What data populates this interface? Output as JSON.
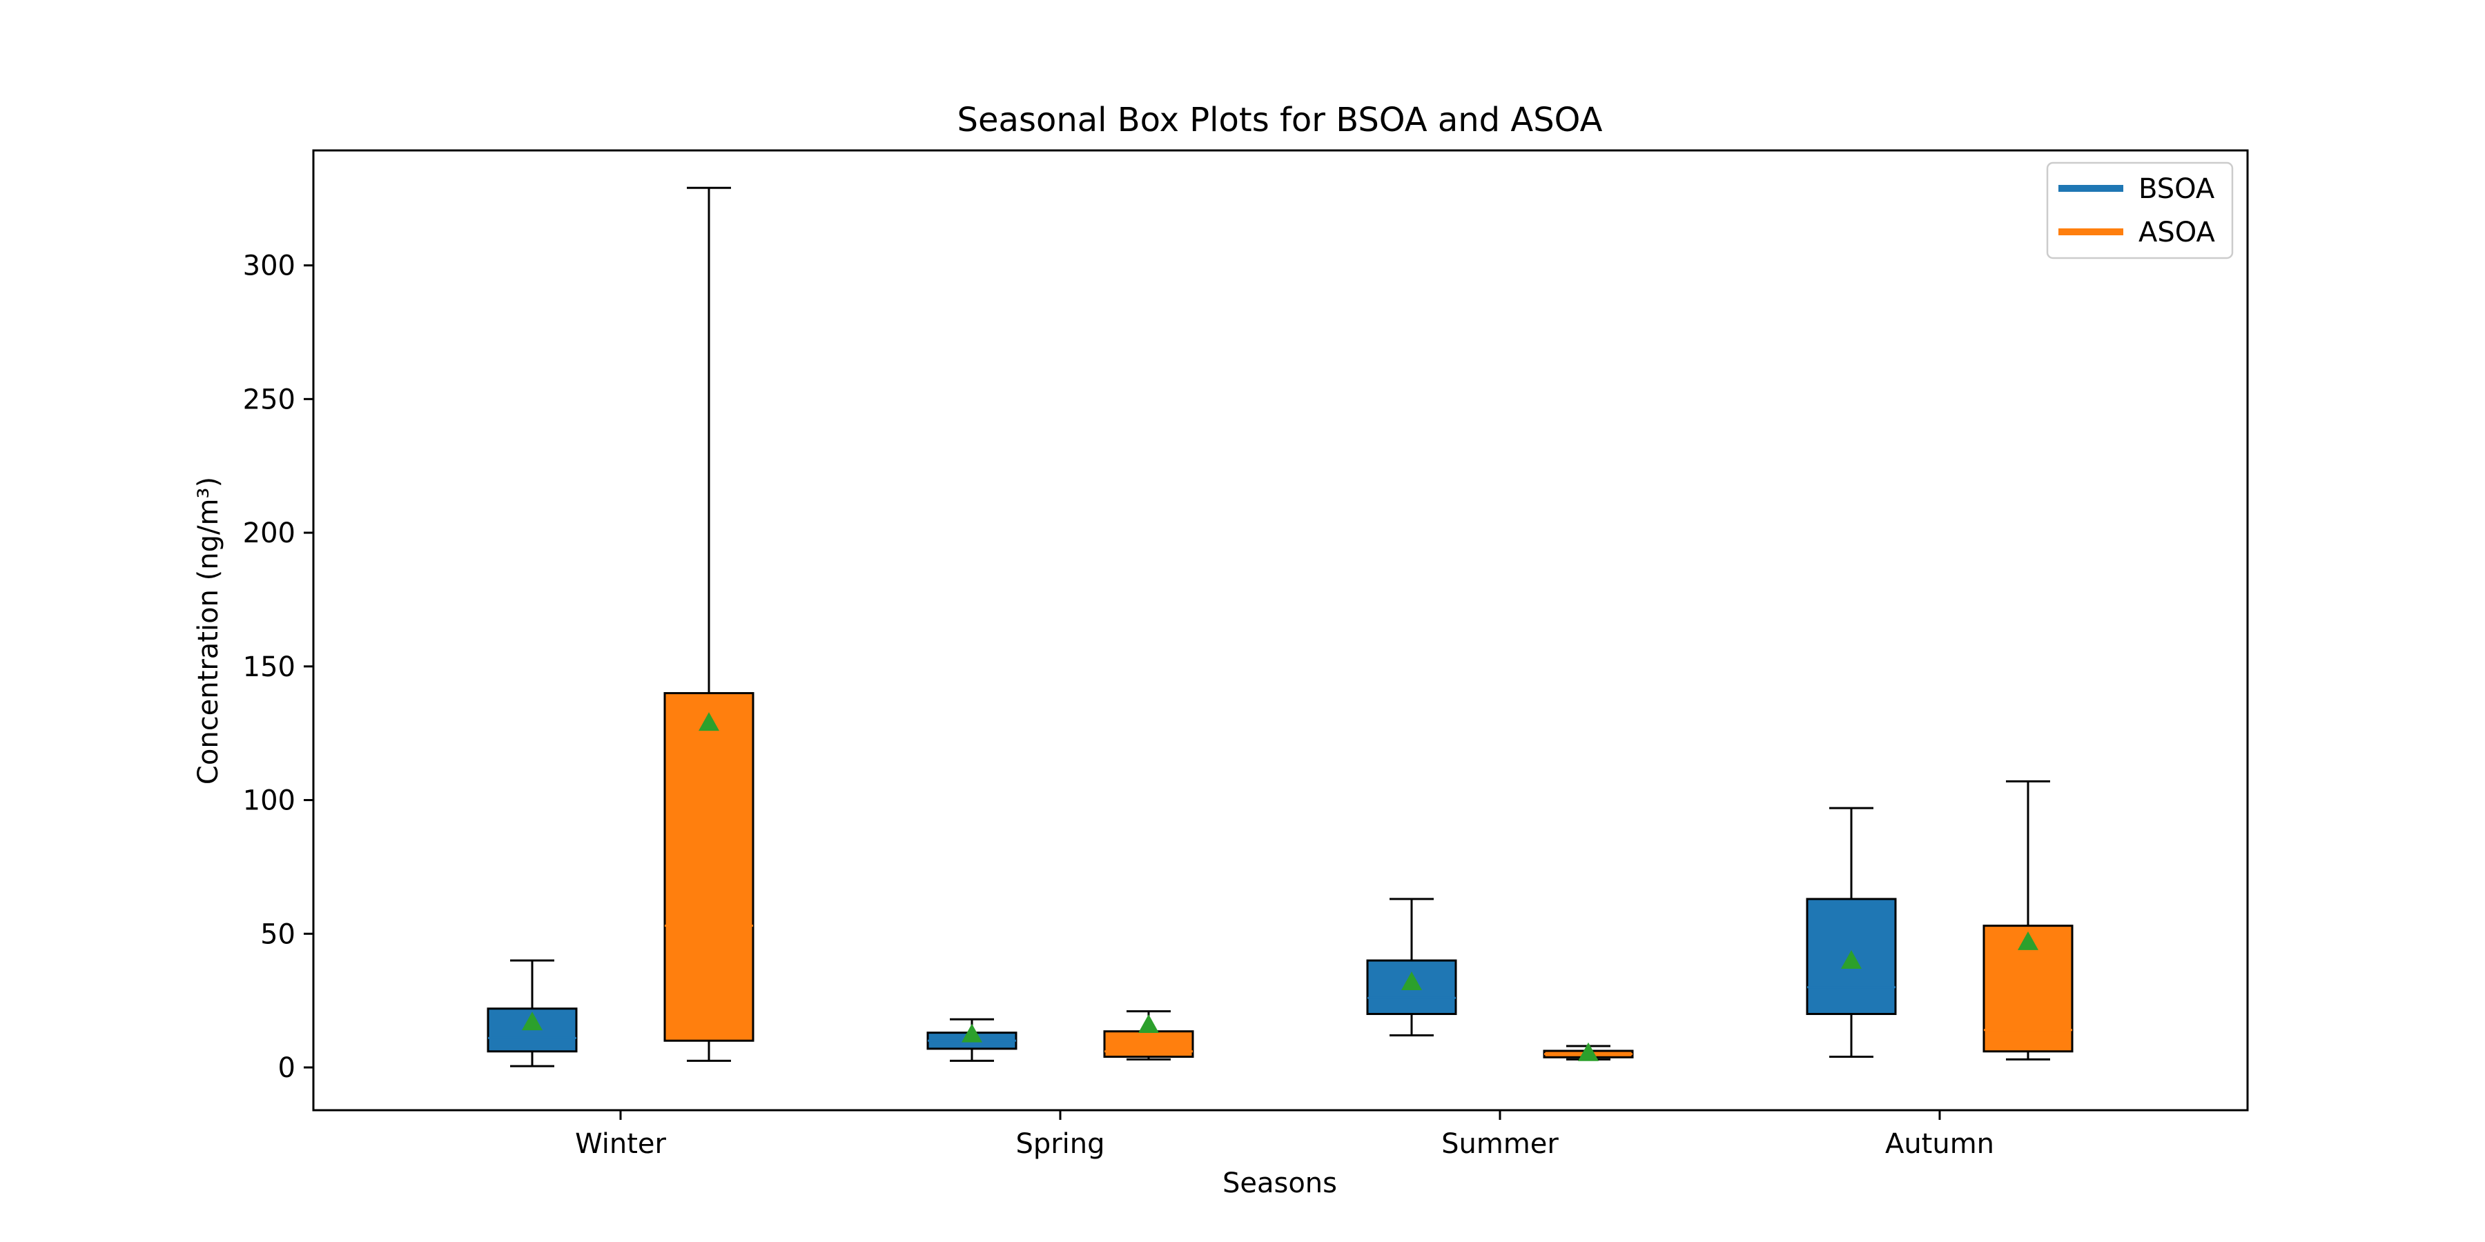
{
  "chart_data": {
    "type": "box",
    "title": "Seasonal Box Plots for BSOA and ASOA",
    "xlabel": "Seasons",
    "ylabel": "Concentration (ng/m³)",
    "categories": [
      "Winter",
      "Spring",
      "Summer",
      "Autumn"
    ],
    "ylim": [
      -16,
      343
    ],
    "yticks": [
      0,
      50,
      100,
      150,
      200,
      250,
      300
    ],
    "grid": false,
    "legend_position": "top-right",
    "series": [
      {
        "name": "BSOA",
        "color": "#1f77b4",
        "boxes": [
          {
            "whisker_low": 0.5,
            "q1": 6,
            "median": 11,
            "q3": 22,
            "whisker_high": 40,
            "mean": 17
          },
          {
            "whisker_low": 2.5,
            "q1": 7,
            "median": 10,
            "q3": 13,
            "whisker_high": 18,
            "mean": 12.5
          },
          {
            "whisker_low": 12,
            "q1": 20,
            "median": 26,
            "q3": 40,
            "whisker_high": 63,
            "mean": 32
          },
          {
            "whisker_low": 4,
            "q1": 20,
            "median": 30,
            "q3": 63,
            "whisker_high": 97,
            "mean": 40
          }
        ]
      },
      {
        "name": "ASOA",
        "color": "#ff7f0e",
        "boxes": [
          {
            "whisker_low": 2.5,
            "q1": 10,
            "median": 53,
            "q3": 140,
            "whisker_high": 329,
            "mean": 129
          },
          {
            "whisker_low": 3,
            "q1": 4,
            "median": 6,
            "q3": 13.5,
            "whisker_high": 21,
            "mean": 16
          },
          {
            "whisker_low": 3,
            "q1": 3.8,
            "median": 5,
            "q3": 6.2,
            "whisker_high": 8,
            "mean": 5.5
          },
          {
            "whisker_low": 3,
            "q1": 6,
            "median": 14,
            "q3": 53,
            "whisker_high": 107,
            "mean": 47
          }
        ]
      }
    ],
    "mean_marker_color": "#2ca02c"
  }
}
